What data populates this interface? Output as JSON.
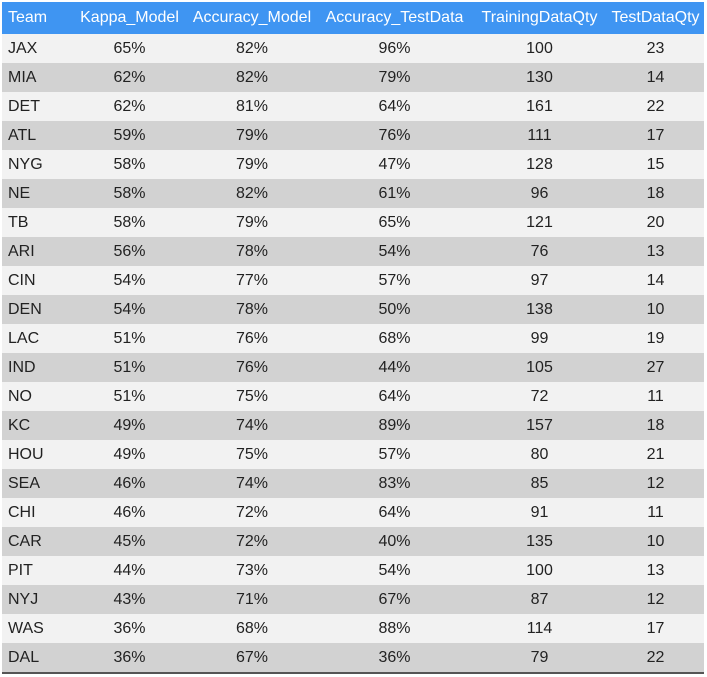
{
  "chart_data": {
    "type": "table",
    "columns": [
      "Team",
      "Kappa_Model",
      "Accuracy_Model",
      "Accuracy_TestData",
      "TrainingDataQty",
      "TestDataQty"
    ],
    "rows": [
      [
        "JAX",
        "65%",
        "82%",
        "96%",
        "100",
        "23"
      ],
      [
        "MIA",
        "62%",
        "82%",
        "79%",
        "130",
        "14"
      ],
      [
        "DET",
        "62%",
        "81%",
        "64%",
        "161",
        "22"
      ],
      [
        "ATL",
        "59%",
        "79%",
        "76%",
        "111",
        "17"
      ],
      [
        "NYG",
        "58%",
        "79%",
        "47%",
        "128",
        "15"
      ],
      [
        "NE",
        "58%",
        "82%",
        "61%",
        "96",
        "18"
      ],
      [
        "TB",
        "58%",
        "79%",
        "65%",
        "121",
        "20"
      ],
      [
        "ARI",
        "56%",
        "78%",
        "54%",
        "76",
        "13"
      ],
      [
        "CIN",
        "54%",
        "77%",
        "57%",
        "97",
        "14"
      ],
      [
        "DEN",
        "54%",
        "78%",
        "50%",
        "138",
        "10"
      ],
      [
        "LAC",
        "51%",
        "76%",
        "68%",
        "99",
        "19"
      ],
      [
        "IND",
        "51%",
        "76%",
        "44%",
        "105",
        "27"
      ],
      [
        "NO",
        "51%",
        "75%",
        "64%",
        "72",
        "11"
      ],
      [
        "KC",
        "49%",
        "74%",
        "89%",
        "157",
        "18"
      ],
      [
        "HOU",
        "49%",
        "75%",
        "57%",
        "80",
        "21"
      ],
      [
        "SEA",
        "46%",
        "74%",
        "83%",
        "85",
        "12"
      ],
      [
        "CHI",
        "46%",
        "72%",
        "64%",
        "91",
        "11"
      ],
      [
        "CAR",
        "45%",
        "72%",
        "40%",
        "135",
        "10"
      ],
      [
        "PIT",
        "44%",
        "73%",
        "54%",
        "100",
        "13"
      ],
      [
        "NYJ",
        "43%",
        "71%",
        "67%",
        "87",
        "12"
      ],
      [
        "WAS",
        "36%",
        "68%",
        "88%",
        "114",
        "17"
      ],
      [
        "DAL",
        "36%",
        "67%",
        "36%",
        "79",
        "22"
      ]
    ]
  },
  "colors": {
    "header_background": "#3f95f2",
    "header_text": "#ffffff",
    "row_light": "#f2f2f2",
    "row_dark": "#d2d2d2",
    "text": "#222222"
  }
}
